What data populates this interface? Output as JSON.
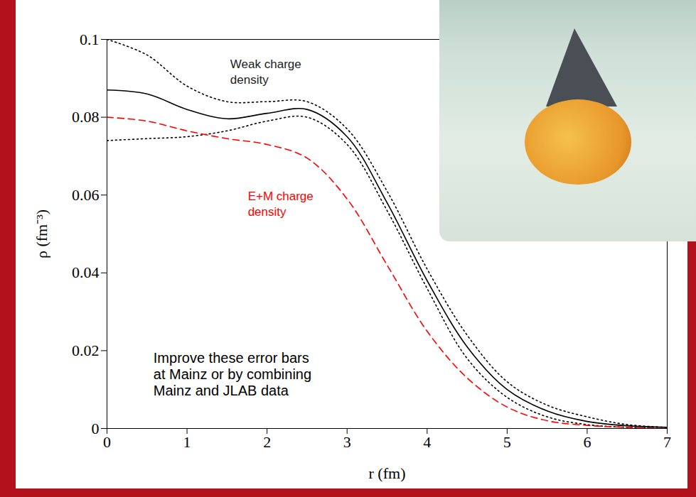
{
  "chart_data": {
    "type": "line",
    "x_label": "r (fm)",
    "y_label": "ρ (fm⁻³)",
    "x": [
      0,
      0.5,
      1,
      1.5,
      2,
      2.5,
      3,
      3.5,
      4,
      4.5,
      5,
      5.5,
      6,
      6.5,
      7
    ],
    "xlim": [
      0,
      7
    ],
    "xticks": [
      0,
      1,
      2,
      3,
      4,
      5,
      6,
      7
    ],
    "ylim": [
      0,
      0.1
    ],
    "yticks": [
      0,
      0.02,
      0.04,
      0.06,
      0.08,
      0.1
    ],
    "grid": false,
    "series": [
      {
        "name": "Weak charge density",
        "color": "#000000",
        "line_style": "solid",
        "values": [
          0.087,
          0.086,
          0.082,
          0.0796,
          0.081,
          0.082,
          0.075,
          0.058,
          0.038,
          0.021,
          0.01,
          0.0045,
          0.0018,
          0.0007,
          0.0003
        ]
      },
      {
        "color": "#000000",
        "line_style": "dotted",
        "values": [
          0.1,
          0.096,
          0.088,
          0.084,
          0.084,
          0.084,
          0.077,
          0.061,
          0.041,
          0.024,
          0.012,
          0.006,
          0.003,
          0.001,
          0.0003
        ]
      },
      {
        "color": "#000000",
        "line_style": "dotted",
        "values": [
          0.074,
          0.0745,
          0.075,
          0.0765,
          0.079,
          0.08,
          0.073,
          0.056,
          0.036,
          0.018,
          0.008,
          0.003,
          0.001,
          0.0003,
          0
        ]
      },
      {
        "name": "E+M charge density",
        "color": "#ff0000",
        "line_style": "dashed",
        "values": [
          0.08,
          0.079,
          0.0765,
          0.0745,
          0.073,
          0.0695,
          0.059,
          0.042,
          0.025,
          0.013,
          0.0055,
          0.002,
          0.0008,
          0.0003,
          0
        ]
      }
    ],
    "annotations": [
      "Improve these error bars\nat Mainz or by combining\nMainz and JLAB data"
    ]
  }
}
